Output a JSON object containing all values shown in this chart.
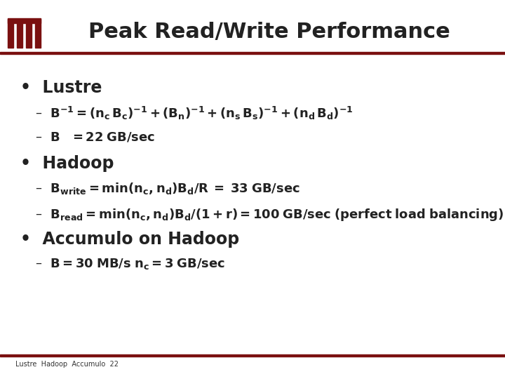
{
  "title": "Peak Read/Write Performance",
  "bg_color": "#ffffff",
  "header_line_color": "#7a1010",
  "title_color": "#222222",
  "title_fontsize": 22,
  "logo_color_dark": "#7a1010",
  "bullet_color": "#222222",
  "bullet_fontsize": 17,
  "sub_fontsize": 13,
  "footer_text": "Lustre  Hadoop  Accumulo  22",
  "footer_fontsize": 7,
  "sections": [
    {
      "bullet": "Lustre",
      "items": [
        {
          "text": "$\\mathbf{B^{-1} = (n_c\\, B_c)^{-1} + (B_n)^{-1} + (n_s\\, B_s)^{-1} + (n_d\\, B_d)^{-1}}$"
        },
        {
          "text": "$\\mathbf{B \\;\\;\\; = 22\\; GB/sec}$"
        }
      ]
    },
    {
      "bullet": "Hadoop",
      "items": [
        {
          "text": "$\\mathbf{B_{write} = min(n_c,n_d)B_d/R \\;=\\; 33\\; GB/sec}$"
        },
        {
          "text": "$\\mathbf{B_{read} = min(n_c,n_d)B_d/(1 + r) = 100\\; GB/sec\\; (perfect\\; load\\; balancing)}$"
        }
      ]
    },
    {
      "bullet": "Accumulo on Hadoop",
      "items": [
        {
          "text": "$\\mathbf{B = 30\\; MB/s\\; n_c = 3\\; GB/sec}$"
        }
      ]
    }
  ]
}
